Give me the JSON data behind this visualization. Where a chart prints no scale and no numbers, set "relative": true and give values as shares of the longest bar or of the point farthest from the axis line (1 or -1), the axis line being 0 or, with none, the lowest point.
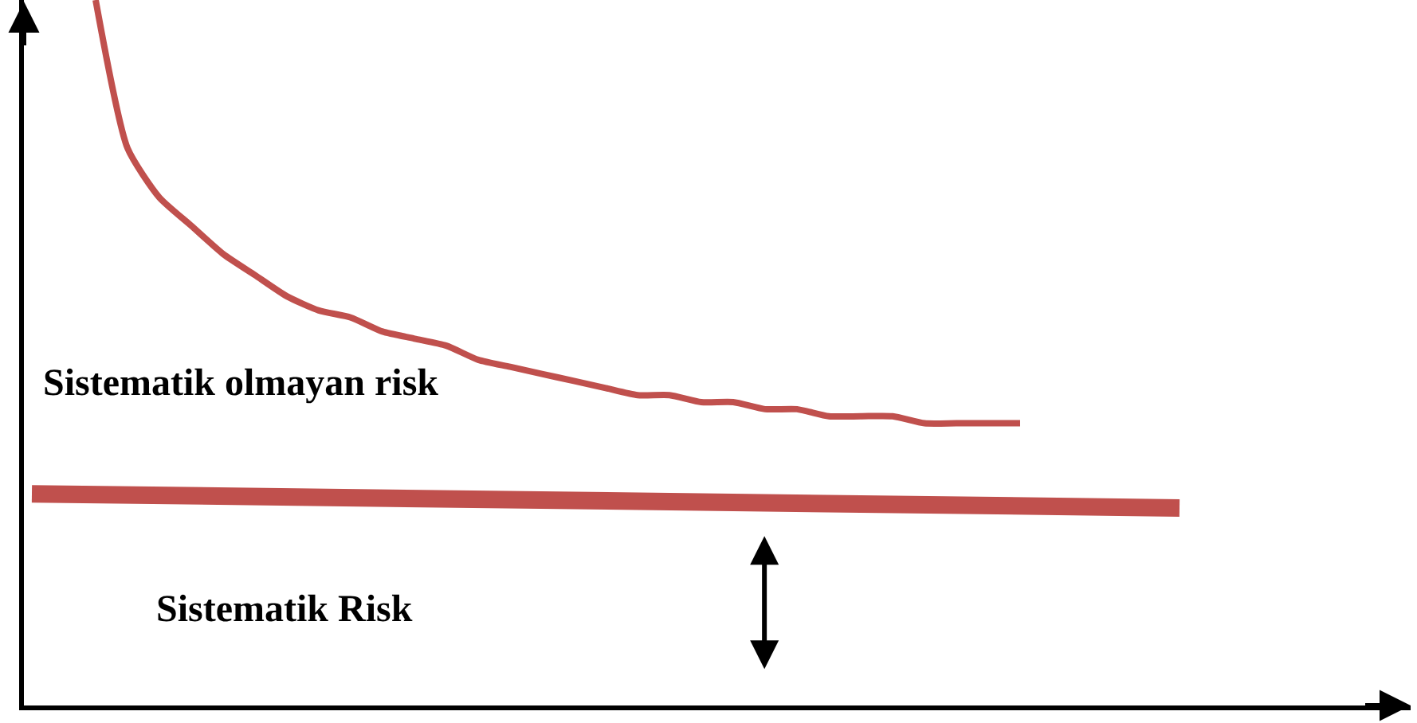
{
  "chart_data": {
    "type": "line",
    "relative": true,
    "categories": [
      null,
      null,
      null,
      null,
      null,
      null,
      null,
      null,
      null,
      null,
      null,
      null,
      null,
      null,
      null,
      null,
      null,
      null,
      null,
      null,
      null,
      null,
      null,
      null,
      null,
      null,
      null,
      null,
      null,
      null,
      null,
      null,
      null,
      null,
      null,
      null,
      null
    ],
    "series": [
      {
        "color": "#c0504d",
        "values": [
          null,
          null,
          1.0,
          0.79,
          0.72,
          0.68,
          0.64,
          0.61,
          0.58,
          0.56,
          0.55,
          0.53,
          0.52,
          0.51,
          0.49,
          0.48,
          0.47,
          0.46,
          0.45,
          0.44,
          0.44,
          0.43,
          0.43,
          0.42,
          0.42,
          0.41,
          0.41,
          0.41,
          0.4,
          0.4,
          0.4,
          0.4,
          null,
          null,
          null,
          null,
          null
        ]
      },
      {
        "color": "#c0504d",
        "values": [
          0.3,
          null,
          null,
          null,
          null,
          null,
          null,
          null,
          null,
          null,
          null,
          null,
          null,
          null,
          null,
          null,
          null,
          null,
          null,
          null,
          null,
          null,
          null,
          null,
          null,
          null,
          null,
          null,
          null,
          null,
          null,
          null,
          null,
          null,
          null,
          null,
          0.28
        ]
      }
    ],
    "annotations": [
      "Sistematik olmayan risk",
      "Sistematik Risk"
    ],
    "legend": false
  }
}
